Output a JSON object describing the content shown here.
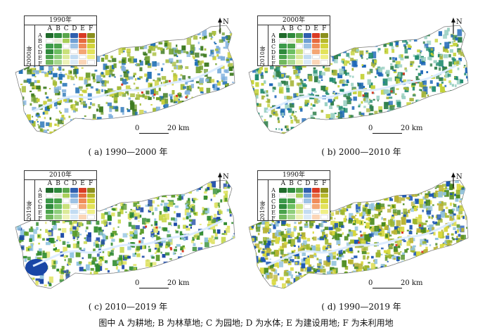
{
  "panels": [
    {
      "id": "a",
      "legend_top": "1990年",
      "legend_side": "2000年",
      "caption": "( a)  1990—2000 年",
      "palette": [
        "#3d7a1f",
        "#6f9e2f",
        "#a7bd3a",
        "#c9cf3a",
        "#1f6fb5",
        "#7fb0de"
      ]
    },
    {
      "id": "b",
      "legend_top": "2000年",
      "legend_side": "2010年",
      "caption": "( b)  2000—2010 年",
      "palette": [
        "#2f7f4a",
        "#1e8a6d",
        "#c4d237",
        "#a6b53a",
        "#1c66b8",
        "#9ad0c2"
      ]
    },
    {
      "id": "c",
      "legend_top": "2010年",
      "legend_side": "2019年",
      "caption": "( c)  2010—2019 年",
      "palette": [
        "#2e8a2d",
        "#5a9b2a",
        "#c6d746",
        "#e2e46a",
        "#1846a6",
        "#8fc3e0"
      ]
    },
    {
      "id": "d",
      "legend_top": "1990年",
      "legend_side": "2019年",
      "caption": "( d)  1990—2019 年",
      "palette": [
        "#4a8a1c",
        "#9cb52b",
        "#d8d83c",
        "#b9b334",
        "#1a55b3",
        "#90c1db"
      ]
    }
  ],
  "legend": {
    "columns": [
      "A",
      "B",
      "C",
      "D",
      "E",
      "F"
    ],
    "rows": [
      "A",
      "B",
      "C",
      "D",
      "E",
      "F"
    ],
    "colors": [
      [
        "#1f6a2a",
        "#2f8a3c",
        "#59a64b",
        "#2f5fae",
        "#d93a24",
        "#8a8f1d"
      ],
      [
        "#ffffff",
        "#e9ecd8",
        "#a9cf5a",
        "#6f9fd4",
        "#e76a3e",
        "#b8ba2a"
      ],
      [
        "#3c9a4a",
        "#4aa34c",
        "#ffffff",
        "#9ec2e4",
        "#f08b5a",
        "#d3d43c"
      ],
      [
        "#2f8a3c",
        "#6cbf62",
        "#c9e07a",
        "#ffffff",
        "#f4a674",
        "#e3e35a"
      ],
      [
        "#4aa34c",
        "#8fcf7c",
        "#dcea9a",
        "#c2dcf2",
        "#ffffff",
        "#efef86"
      ],
      [
        "#70b85e",
        "#a8d88f",
        "#eef2b8",
        "#dbeaf7",
        "#fbd6b8",
        "#ffffff"
      ]
    ]
  },
  "north_label": "N",
  "scale_zero": "0",
  "scale_twenty": "20 km",
  "footnote": "图中 A 为耕地; B 为林草地; C 为园地; D 为水体; E 为建设用地; F 为未利用地"
}
